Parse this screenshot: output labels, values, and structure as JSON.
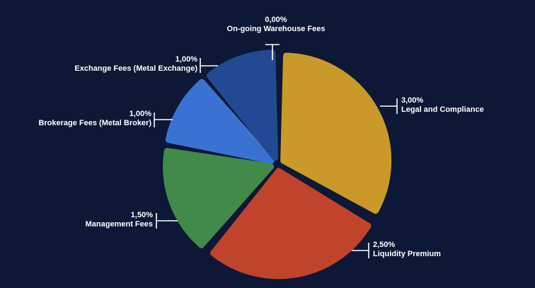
{
  "chart_data": {
    "type": "pie",
    "slices": [
      {
        "label": "On-going Warehouse Fees",
        "value": 0.0,
        "display": "0,00%",
        "color": "#1f3f7e"
      },
      {
        "label": "Legal and Compliance",
        "value": 3.0,
        "display": "3,00%",
        "color": "#c99a2a"
      },
      {
        "label": "Liquidity Premium",
        "value": 2.5,
        "display": "2,50%",
        "color": "#c0432b"
      },
      {
        "label": "Management Fees",
        "value": 1.5,
        "display": "1,50%",
        "color": "#418a4a"
      },
      {
        "label": "Brokerage Fees (Metal Broker)",
        "value": 1.0,
        "display": "1,00%",
        "color": "#3a72d4"
      },
      {
        "label": "Exchange Fees (Metal Exchange)",
        "value": 1.0,
        "display": "1,00%",
        "color": "#224a92"
      }
    ],
    "legend": "none"
  }
}
